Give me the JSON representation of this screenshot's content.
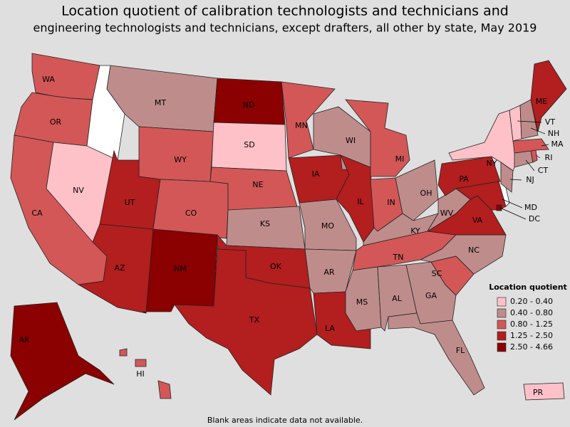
{
  "title": [
    "Location quotient of calibration technologists and technicians and",
    "engineering technologists and technicians, except drafters, all other by state, May 2019"
  ],
  "legend": {
    "title": "Location quotient",
    "classes": [
      {
        "label": "0.20 - 0.40",
        "color": "#ffc1c8",
        "states": [
          "NV",
          "SD",
          "NY",
          "VT",
          "PR"
        ]
      },
      {
        "label": "0.40 - 0.80",
        "color": "#bf8c8c",
        "states": [
          "MT",
          "WI",
          "KS",
          "MO",
          "AR",
          "MS",
          "AL",
          "GA",
          "FL",
          "KY",
          "OH",
          "WV",
          "NC",
          "CT",
          "NJ",
          "NH"
        ]
      },
      {
        "label": "0.80 - 1.25",
        "color": "#d35757",
        "states": [
          "WA",
          "OR",
          "CA",
          "WY",
          "CO",
          "NE",
          "MN",
          "MI",
          "IN",
          "TN",
          "SC",
          "MA",
          "RI",
          "HI"
        ]
      },
      {
        "label": "1.25 - 2.50",
        "color": "#b31e1e",
        "states": [
          "UT",
          "AZ",
          "TX",
          "OK",
          "IA",
          "IL",
          "LA",
          "PA",
          "VA",
          "MD",
          "ME"
        ]
      },
      {
        "label": "2.50 - 4.66",
        "color": "#8b0000",
        "states": [
          "ND",
          "NM",
          "AK",
          "DC"
        ]
      }
    ]
  },
  "note": "Blank areas indicate data not available."
}
